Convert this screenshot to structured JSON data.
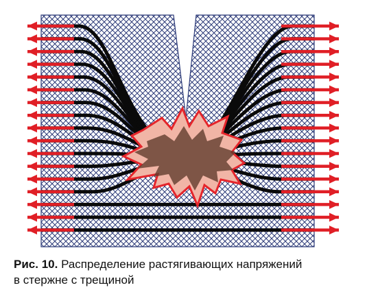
{
  "figure": {
    "caption_label": "Рис. 10.",
    "caption_line1": "Распределение растягивающих напряжений",
    "caption_line2": "в стержне с трещиной"
  },
  "colors": {
    "bar_fill": "#ffffff",
    "hatch": "#2c3a78",
    "stress_line": "#0a0a0a",
    "arrow": "#e01f26",
    "crack_fill": "#f1b5a6",
    "crack_outline": "#e5252b",
    "crack_core": "#5e3a2b"
  },
  "icons": {
    "arrows": "red-tension-arrow",
    "crack": "crack-star"
  }
}
